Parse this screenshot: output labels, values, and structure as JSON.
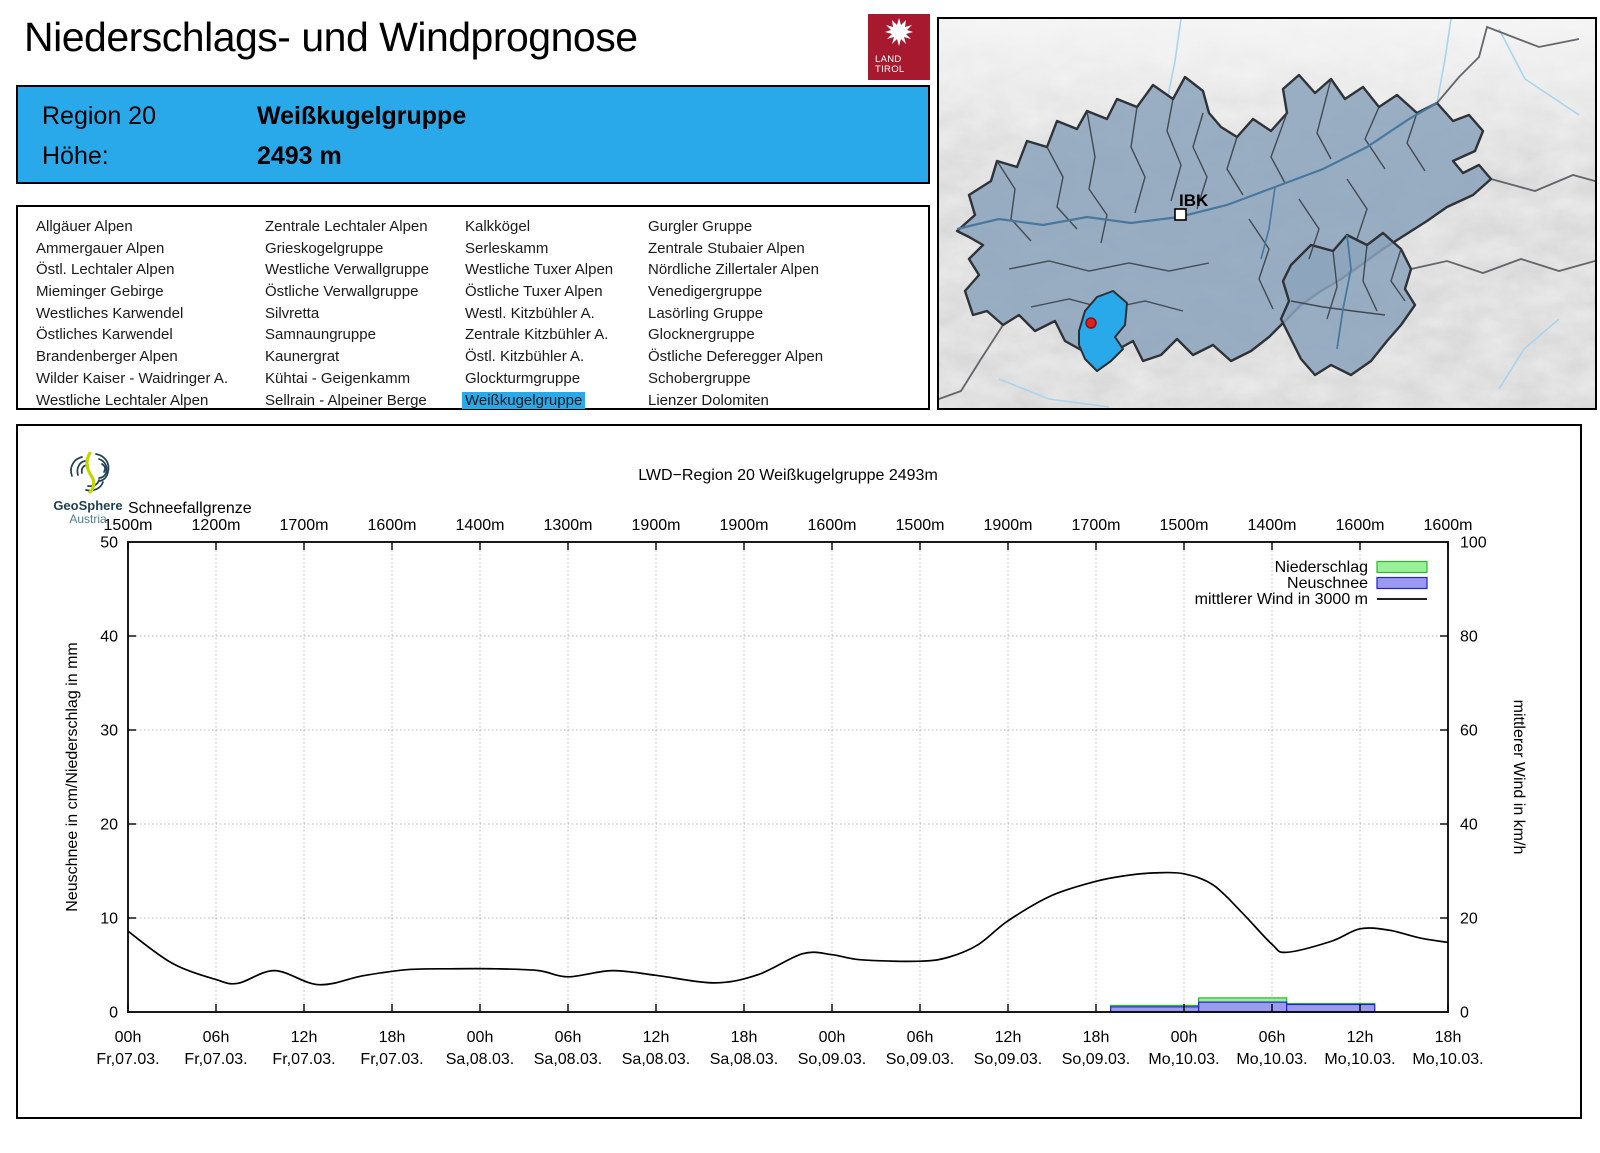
{
  "header": {
    "title": "Niederschlags- und Windprognose",
    "logo": {
      "line1": "LAND",
      "line2": "TIROL",
      "color": "#a6192e"
    }
  },
  "info_box": {
    "region_label": "Region 20",
    "region_name": "Weißkugelgruppe",
    "elevation_label": "Höhe:",
    "elevation_value": "2493 m",
    "background": "#29a9ea"
  },
  "region_list": {
    "selected": "Weißkugelgruppe",
    "highlight_color": "#29a9ea",
    "columns": [
      [
        "Allgäuer Alpen",
        "Ammergauer Alpen",
        "Östl. Lechtaler Alpen",
        "Mieminger Gebirge",
        "Westliches Karwendel",
        "Östliches Karwendel",
        "Brandenberger Alpen",
        "Wilder Kaiser - Waidringer A.",
        "Westliche Lechtaler Alpen"
      ],
      [
        "Zentrale Lechtaler Alpen",
        "Grieskogelgruppe",
        "Westliche Verwallgruppe",
        "Östliche Verwallgruppe",
        "Silvretta",
        "Samnaungruppe",
        "Kaunergrat",
        "Kühtai - Geigenkamm",
        "Sellrain - Alpeiner Berge"
      ],
      [
        "Kalkkögel",
        "Serleskamm",
        "Westliche Tuxer Alpen",
        "Östliche Tuxer Alpen",
        "Westl. Kitzbühler A.",
        "Zentrale Kitzbühler A.",
        "Östl. Kitzbühler A.",
        "Glockturmgruppe",
        "Weißkugelgruppe"
      ],
      [
        "Gurgler Gruppe",
        "Zentrale Stubaier Alpen",
        "Nördliche Zillertaler Alpen",
        "Venedigergruppe",
        "Lasörling Gruppe",
        "Glocknergruppe",
        "Östliche Deferegger Alpen",
        "Schobergruppe",
        "Lienzer Dolomiten"
      ]
    ]
  },
  "map": {
    "city_label": "IBK",
    "region_fill": "#8ba3bc",
    "highlight_fill": "#29a9ea",
    "marker_color": "#e02020"
  },
  "chart_data": {
    "type": "line+bar",
    "title": "LWD−Region 20 Weißkugelgruppe 2493m",
    "source_logo": {
      "line1": "GeoSphere",
      "line2": "Austria"
    },
    "snowline": {
      "label": "Schneefallgrenze",
      "values": [
        "1500m",
        "1200m",
        "1700m",
        "1600m",
        "1400m",
        "1300m",
        "1900m",
        "1900m",
        "1600m",
        "1500m",
        "1900m",
        "1700m",
        "1500m",
        "1400m",
        "1600m",
        "1600m"
      ]
    },
    "x_ticks": [
      {
        "time": "00h",
        "date": "Fr,07.03."
      },
      {
        "time": "06h",
        "date": "Fr,07.03."
      },
      {
        "time": "12h",
        "date": "Fr,07.03."
      },
      {
        "time": "18h",
        "date": "Fr,07.03."
      },
      {
        "time": "00h",
        "date": "Sa,08.03."
      },
      {
        "time": "06h",
        "date": "Sa,08.03."
      },
      {
        "time": "12h",
        "date": "Sa,08.03."
      },
      {
        "time": "18h",
        "date": "Sa,08.03."
      },
      {
        "time": "00h",
        "date": "So,09.03."
      },
      {
        "time": "06h",
        "date": "So,09.03."
      },
      {
        "time": "12h",
        "date": "So,09.03."
      },
      {
        "time": "18h",
        "date": "So,09.03."
      },
      {
        "time": "00h",
        "date": "Mo,10.03."
      },
      {
        "time": "06h",
        "date": "Mo,10.03."
      },
      {
        "time": "12h",
        "date": "Mo,10.03."
      },
      {
        "time": "18h",
        "date": "Mo,10.03."
      }
    ],
    "x_axis_total_hours": 90,
    "y_left": {
      "label": "Neuschnee in cm/Niederschlag in mm",
      "min": 0,
      "max": 50,
      "step": 10
    },
    "y_right": {
      "label": "mittlerer Wind in km/h",
      "min": 0,
      "max": 100,
      "step": 20
    },
    "legend": [
      {
        "label": "Niederschlag",
        "fill": "#98f098",
        "stroke": "#2db82d"
      },
      {
        "label": "Neuschnee",
        "fill": "#9a9aee",
        "stroke": "#2323c8"
      },
      {
        "label": "mittlerer Wind in 3000 m",
        "stroke": "#000000"
      }
    ],
    "wind_series": {
      "name": "mittlerer Wind in 3000 m",
      "unit": "km/h",
      "points": [
        [
          0,
          17.2
        ],
        [
          3,
          10.4
        ],
        [
          6,
          6.9
        ],
        [
          7.5,
          6.1
        ],
        [
          10,
          8.8
        ],
        [
          13,
          5.8
        ],
        [
          16,
          7.7
        ],
        [
          19,
          9.0
        ],
        [
          22,
          9.2
        ],
        [
          25,
          9.2
        ],
        [
          28,
          8.8
        ],
        [
          30,
          7.5
        ],
        [
          33,
          8.8
        ],
        [
          36,
          7.8
        ],
        [
          40,
          6.2
        ],
        [
          43,
          8.0
        ],
        [
          46,
          12.4
        ],
        [
          48,
          12.2
        ],
        [
          50,
          11.1
        ],
        [
          54,
          10.8
        ],
        [
          56,
          11.7
        ],
        [
          58,
          14.4
        ],
        [
          60,
          19.4
        ],
        [
          63,
          24.8
        ],
        [
          66,
          27.8
        ],
        [
          68,
          29.0
        ],
        [
          70,
          29.6
        ],
        [
          72,
          29.4
        ],
        [
          74,
          27.0
        ],
        [
          76,
          21.0
        ],
        [
          78,
          14.4
        ],
        [
          79,
          12.7
        ],
        [
          82,
          15.0
        ],
        [
          84,
          17.7
        ],
        [
          86,
          17.4
        ],
        [
          88,
          15.8
        ],
        [
          90,
          14.8
        ]
      ]
    },
    "bars": [
      {
        "from_hour": 67,
        "to_hour": 73,
        "niederschlag_mm": 0.7,
        "neuschnee_cm": 0.55
      },
      {
        "from_hour": 73,
        "to_hour": 79,
        "niederschlag_mm": 1.5,
        "neuschnee_cm": 1.05
      },
      {
        "from_hour": 79,
        "to_hour": 85,
        "niederschlag_mm": 0.9,
        "neuschnee_cm": 0.8
      }
    ]
  }
}
